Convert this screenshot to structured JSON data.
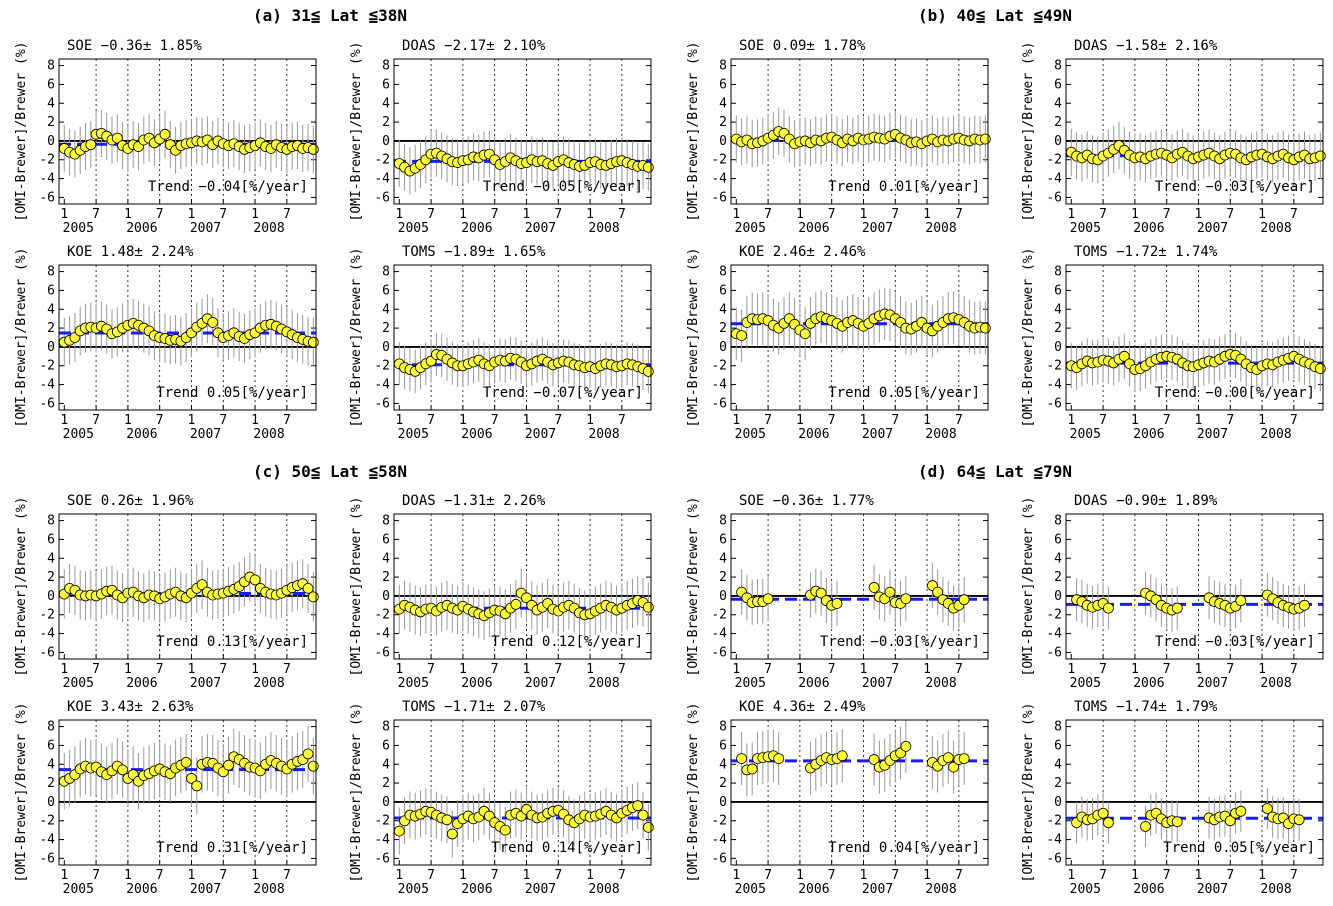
{
  "groups": [
    "(a) 31≦ Lat ≦38N",
    "(b) 40≦ Lat ≦49N",
    "(c) 50≦ Lat ≦58N",
    "(d) 64≦ Lat ≦79N"
  ],
  "axes": {
    "ylabel": "[OMI-Brewer]/Brewer (%)",
    "ylim": [
      -6.7,
      8.7
    ],
    "yticks": [
      -6,
      -4,
      -2,
      0,
      2,
      4,
      6,
      8
    ],
    "xlim": [
      0,
      48.5
    ],
    "xticks": [
      {
        "value": 1,
        "label": "1"
      },
      {
        "value": 7,
        "label": "7"
      },
      {
        "value": 13,
        "label": "1"
      },
      {
        "value": 19,
        "label": "7"
      },
      {
        "value": 25,
        "label": "1"
      },
      {
        "value": 31,
        "label": "7"
      },
      {
        "value": 37,
        "label": "1"
      },
      {
        "value": 43,
        "label": "7"
      }
    ],
    "years": [
      {
        "value": 1,
        "label": "2005"
      },
      {
        "value": 13,
        "label": "2006"
      },
      {
        "value": 25,
        "label": "2007"
      },
      {
        "value": 37,
        "label": "2008"
      }
    ],
    "x": [
      1,
      2,
      3,
      4,
      5,
      6,
      7,
      8,
      9,
      10,
      11,
      12,
      13,
      14,
      15,
      16,
      17,
      18,
      19,
      20,
      21,
      22,
      23,
      24,
      25,
      26,
      27,
      28,
      29,
      30,
      31,
      32,
      33,
      34,
      35,
      36,
      37,
      38,
      39,
      40,
      41,
      42,
      43,
      44,
      45,
      46,
      47,
      48
    ]
  },
  "chart_data": [
    {
      "type": "scatter",
      "title": "SOE −0.36± 1.85%",
      "mean": -0.36,
      "error": 2.5,
      "annotation": "Trend −0.04[%/year]",
      "values": [
        -0.8,
        -1.2,
        -1.4,
        -1.0,
        -0.6,
        -0.4,
        0.7,
        0.8,
        0.5,
        0.1,
        0.3,
        -0.5,
        -0.8,
        -0.4,
        -0.6,
        0.1,
        0.3,
        -0.2,
        0.2,
        0.7,
        -0.4,
        -1.0,
        -0.5,
        -0.3,
        -0.2,
        0.0,
        -0.1,
        0.1,
        -0.4,
        0.0,
        -0.3,
        -0.5,
        -0.3,
        -0.6,
        -0.9,
        -0.7,
        -0.5,
        -0.2,
        -0.6,
        -0.8,
        -0.4,
        -0.7,
        -0.9,
        -0.6,
        -0.5,
        -0.8,
        -0.7,
        -0.9
      ]
    },
    {
      "type": "scatter",
      "title": "DOAS −2.17± 2.10%",
      "mean": -2.17,
      "error": 2.5,
      "annotation": "Trend −0.05[%/year]",
      "values": [
        -2.4,
        -2.8,
        -3.2,
        -2.9,
        -2.5,
        -2.0,
        -1.4,
        -1.3,
        -1.6,
        -1.9,
        -2.2,
        -2.3,
        -2.1,
        -2.0,
        -1.7,
        -1.8,
        -1.5,
        -1.4,
        -2.0,
        -2.5,
        -2.2,
        -1.8,
        -2.1,
        -2.4,
        -2.3,
        -2.0,
        -2.2,
        -2.1,
        -2.4,
        -2.6,
        -2.2,
        -2.0,
        -2.3,
        -2.5,
        -2.7,
        -2.6,
        -2.3,
        -2.2,
        -2.5,
        -2.6,
        -2.4,
        -2.2,
        -2.1,
        -2.3,
        -2.5,
        -2.7,
        -2.6,
        -2.8
      ]
    },
    {
      "type": "scatter",
      "title": "SOE 0.09± 1.78%",
      "mean": 0.09,
      "error": 2.5,
      "annotation": "Trend 0.01[%/year]",
      "values": [
        0.2,
        -0.1,
        0.1,
        -0.3,
        -0.2,
        0.0,
        0.3,
        0.6,
        1.0,
        0.8,
        0.2,
        -0.3,
        -0.1,
        0.0,
        -0.2,
        0.1,
        0.0,
        0.3,
        0.4,
        0.1,
        -0.2,
        0.2,
        0.0,
        0.3,
        0.1,
        0.2,
        0.4,
        0.3,
        0.2,
        0.5,
        0.7,
        0.3,
        0.1,
        -0.2,
        -0.1,
        -0.3,
        0.0,
        0.2,
        -0.1,
        0.1,
        0.0,
        0.2,
        0.3,
        0.1,
        0.0,
        0.2,
        0.1,
        0.2
      ]
    },
    {
      "type": "scatter",
      "title": "DOAS −1.58± 2.16%",
      "mean": -1.58,
      "error": 2.5,
      "annotation": "Trend −0.03[%/year]",
      "values": [
        -1.2,
        -1.6,
        -1.8,
        -1.5,
        -1.9,
        -2.0,
        -1.6,
        -1.3,
        -0.9,
        -0.5,
        -1.0,
        -1.5,
        -1.8,
        -1.7,
        -1.9,
        -1.6,
        -1.4,
        -1.3,
        -1.5,
        -1.8,
        -1.4,
        -1.2,
        -1.6,
        -1.9,
        -1.7,
        -1.5,
        -1.3,
        -1.6,
        -1.9,
        -1.5,
        -1.3,
        -1.4,
        -1.8,
        -2.0,
        -1.7,
        -1.5,
        -1.4,
        -1.7,
        -1.9,
        -1.6,
        -1.4,
        -1.8,
        -2.0,
        -1.7,
        -1.5,
        -1.9,
        -1.8,
        -1.6
      ]
    },
    {
      "type": "scatter",
      "title": "KOE 1.48± 2.24%",
      "mean": 1.48,
      "error": 2.6,
      "annotation": "Trend 0.05[%/year]",
      "values": [
        0.5,
        0.7,
        1.0,
        1.7,
        2.0,
        2.1,
        2.0,
        2.2,
        1.9,
        1.4,
        1.6,
        2.0,
        2.3,
        2.5,
        2.3,
        2.0,
        1.7,
        1.2,
        1.0,
        0.9,
        0.7,
        0.8,
        0.6,
        1.0,
        1.5,
        2.1,
        2.5,
        3.0,
        2.6,
        1.5,
        1.0,
        1.2,
        1.5,
        1.1,
        0.9,
        1.3,
        1.5,
        2.0,
        2.3,
        2.4,
        2.2,
        1.9,
        1.6,
        1.3,
        1.0,
        0.8,
        0.6,
        0.5
      ]
    },
    {
      "type": "scatter",
      "title": "TOMS −1.89± 1.65%",
      "mean": -1.89,
      "error": 2.3,
      "annotation": "Trend −0.07[%/year]",
      "values": [
        -1.8,
        -2.2,
        -2.4,
        -2.6,
        -2.2,
        -1.8,
        -1.5,
        -0.8,
        -0.9,
        -1.3,
        -1.7,
        -2.0,
        -2.0,
        -1.8,
        -1.6,
        -1.4,
        -1.8,
        -2.0,
        -1.6,
        -1.4,
        -1.5,
        -1.2,
        -1.3,
        -1.6,
        -2.0,
        -1.8,
        -1.5,
        -1.3,
        -1.6,
        -1.9,
        -1.7,
        -1.5,
        -1.6,
        -1.9,
        -2.0,
        -2.2,
        -2.1,
        -2.3,
        -2.0,
        -1.8,
        -1.9,
        -2.1,
        -2.0,
        -1.8,
        -1.9,
        -2.1,
        -2.3,
        -2.6
      ]
    },
    {
      "type": "scatter",
      "title": "KOE 2.46± 2.46%",
      "mean": 2.46,
      "error": 2.8,
      "annotation": "Trend 0.05[%/year]",
      "values": [
        1.4,
        1.2,
        2.6,
        3.0,
        2.9,
        3.0,
        2.8,
        2.3,
        2.0,
        2.5,
        3.0,
        2.4,
        1.8,
        1.4,
        2.5,
        3.0,
        3.2,
        3.0,
        2.8,
        2.5,
        2.2,
        2.6,
        2.8,
        2.5,
        2.2,
        2.5,
        3.0,
        3.3,
        3.5,
        3.4,
        3.0,
        2.6,
        2.0,
        1.9,
        2.2,
        2.6,
        2.0,
        1.7,
        2.2,
        2.6,
        3.0,
        3.1,
        2.9,
        2.6,
        2.2,
        2.0,
        2.1,
        2.0
      ]
    },
    {
      "type": "scatter",
      "title": "TOMS −1.72± 1.74%",
      "mean": -1.72,
      "error": 2.4,
      "annotation": "Trend −0.00[%/year]",
      "values": [
        -2.0,
        -2.2,
        -1.8,
        -1.5,
        -1.7,
        -1.6,
        -1.4,
        -1.5,
        -1.7,
        -1.3,
        -1.0,
        -1.8,
        -2.4,
        -2.3,
        -2.0,
        -1.6,
        -1.3,
        -1.1,
        -1.0,
        -1.1,
        -1.3,
        -1.7,
        -2.0,
        -2.1,
        -1.9,
        -1.7,
        -1.5,
        -1.6,
        -1.3,
        -1.0,
        -0.8,
        -0.9,
        -1.3,
        -1.8,
        -2.2,
        -2.4,
        -2.0,
        -1.8,
        -1.9,
        -1.6,
        -1.4,
        -1.2,
        -1.0,
        -1.3,
        -1.6,
        -1.8,
        -2.1,
        -2.3
      ]
    },
    {
      "type": "scatter",
      "title": "SOE 0.26± 1.96%",
      "mean": 0.26,
      "error": 2.6,
      "annotation": "Trend 0.13[%/year]",
      "values": [
        0.2,
        0.8,
        0.6,
        0.1,
        0.0,
        0.1,
        0.0,
        0.2,
        0.5,
        0.6,
        0.1,
        -0.2,
        0.3,
        0.4,
        0.0,
        -0.2,
        0.1,
        0.0,
        -0.3,
        -0.1,
        0.2,
        0.4,
        0.0,
        -0.2,
        0.3,
        0.8,
        1.2,
        0.4,
        0.1,
        0.2,
        0.3,
        0.5,
        0.7,
        1.0,
        1.5,
        2.0,
        1.7,
        0.8,
        0.4,
        0.2,
        0.1,
        0.3,
        0.6,
        0.9,
        1.1,
        1.3,
        0.8,
        -0.1
      ]
    },
    {
      "type": "scatter",
      "title": "DOAS −1.31± 2.26%",
      "mean": -1.31,
      "error": 2.6,
      "annotation": "Trend 0.12[%/year]",
      "values": [
        -1.4,
        -1.0,
        -1.2,
        -1.5,
        -1.7,
        -1.4,
        -1.3,
        -1.6,
        -1.2,
        -1.0,
        -1.3,
        -1.5,
        -1.1,
        -1.4,
        -1.7,
        -1.9,
        -2.1,
        -1.8,
        -1.5,
        -1.6,
        -1.9,
        -1.3,
        -0.9,
        0.3,
        -0.2,
        -1.0,
        -1.5,
        -1.2,
        -0.8,
        -1.4,
        -1.6,
        -1.2,
        -1.0,
        -1.3,
        -1.8,
        -2.0,
        -1.9,
        -1.6,
        -1.3,
        -1.0,
        -1.2,
        -1.5,
        -1.3,
        -1.0,
        -0.8,
        -0.5,
        -0.7,
        -1.2
      ]
    },
    {
      "type": "scatter",
      "title": "SOE −0.36± 1.77%",
      "mean": -0.36,
      "error": 2.4,
      "annotation": "Trend −0.03[%/year]",
      "values": [
        null,
        0.4,
        -0.2,
        -0.7,
        -0.6,
        -0.6,
        -0.3,
        null,
        null,
        null,
        null,
        null,
        null,
        null,
        0.1,
        0.5,
        0.3,
        -0.5,
        -1.0,
        -0.8,
        null,
        null,
        null,
        null,
        null,
        null,
        0.9,
        -0.1,
        -0.3,
        0.4,
        -0.7,
        -0.8,
        -0.3,
        null,
        null,
        null,
        null,
        1.1,
        0.4,
        -0.4,
        -0.8,
        -1.3,
        -1.0,
        -0.4,
        null,
        null,
        null,
        null
      ]
    },
    {
      "type": "scatter",
      "title": "DOAS −0.90± 1.89%",
      "mean": -0.9,
      "error": 2.3,
      "annotation": "Trend −0.03[%/year]",
      "values": [
        null,
        -0.4,
        -0.6,
        -1.0,
        -1.2,
        -1.0,
        -0.8,
        -1.3,
        null,
        null,
        null,
        null,
        null,
        null,
        0.3,
        0.0,
        -0.4,
        -1.0,
        -1.3,
        -1.5,
        -1.3,
        null,
        null,
        null,
        null,
        null,
        -0.2,
        -0.6,
        -0.8,
        -1.0,
        -1.3,
        -1.1,
        -0.5,
        null,
        null,
        null,
        null,
        0.1,
        -0.3,
        -0.7,
        -1.0,
        -1.2,
        -1.4,
        -1.3,
        -1.0,
        null,
        null,
        null
      ]
    },
    {
      "type": "scatter",
      "title": "KOE 3.43± 2.63%",
      "mean": 3.43,
      "error": 3.0,
      "annotation": "Trend 0.31[%/year]",
      "values": [
        2.2,
        2.5,
        2.9,
        3.5,
        3.8,
        3.6,
        3.7,
        3.2,
        2.9,
        3.3,
        3.8,
        3.4,
        2.5,
        2.9,
        2.2,
        2.8,
        3.0,
        3.3,
        3.5,
        3.2,
        3.0,
        3.6,
        3.9,
        4.2,
        2.5,
        1.7,
        4.0,
        4.2,
        4.1,
        3.6,
        3.2,
        3.9,
        4.8,
        4.5,
        4.1,
        3.7,
        3.6,
        3.3,
        4.0,
        4.4,
        4.1,
        3.8,
        3.5,
        4.0,
        4.3,
        4.5,
        5.1,
        3.8
      ]
    },
    {
      "type": "scatter",
      "title": "TOMS −1.71± 2.07%",
      "mean": -1.71,
      "error": 2.5,
      "annotation": "Trend 0.14[%/year]",
      "values": [
        -3.1,
        -2.0,
        -1.4,
        -1.5,
        -1.3,
        -1.0,
        -1.1,
        -1.4,
        -1.7,
        -1.9,
        -3.4,
        -2.3,
        -1.8,
        -1.5,
        -1.8,
        -1.6,
        -1.0,
        -1.5,
        -2.2,
        -2.6,
        -3.0,
        -1.4,
        -1.2,
        -1.5,
        -0.8,
        -1.4,
        -1.7,
        -1.6,
        -1.2,
        -1.0,
        -0.9,
        -1.3,
        -1.9,
        -2.2,
        -1.8,
        -1.4,
        -1.6,
        -1.5,
        -1.3,
        -1.0,
        -1.4,
        -1.7,
        -1.2,
        -0.9,
        -0.6,
        -0.4,
        -1.4,
        -2.7
      ]
    },
    {
      "type": "scatter",
      "title": "KOE 4.36± 2.49%",
      "mean": 4.36,
      "error": 2.8,
      "annotation": "Trend 0.04[%/year]",
      "values": [
        null,
        4.6,
        3.4,
        3.5,
        4.6,
        4.7,
        4.8,
        4.9,
        4.6,
        null,
        null,
        null,
        null,
        null,
        3.6,
        4.0,
        4.4,
        4.7,
        4.5,
        4.6,
        4.9,
        null,
        null,
        null,
        null,
        null,
        4.5,
        3.7,
        3.9,
        4.4,
        4.9,
        5.2,
        5.9,
        null,
        null,
        null,
        null,
        4.2,
        3.8,
        4.4,
        4.7,
        3.7,
        4.5,
        4.6,
        null,
        null,
        null,
        null
      ]
    },
    {
      "type": "scatter",
      "title": "TOMS −1.74± 1.79%",
      "mean": -1.74,
      "error": 2.2,
      "annotation": "Trend 0.05[%/year]",
      "values": [
        null,
        -2.2,
        -1.6,
        -1.9,
        -1.8,
        -1.4,
        -1.2,
        -2.2,
        null,
        null,
        null,
        null,
        null,
        null,
        -2.6,
        -1.4,
        -1.2,
        -1.8,
        -2.2,
        -2.0,
        -2.1,
        null,
        null,
        null,
        null,
        null,
        -1.7,
        -1.9,
        -1.6,
        -1.5,
        -2.0,
        -1.2,
        -1.0,
        null,
        null,
        null,
        null,
        -0.7,
        -1.6,
        -1.8,
        -1.7,
        -2.3,
        -1.8,
        -1.9,
        null,
        null,
        null,
        null
      ]
    }
  ]
}
